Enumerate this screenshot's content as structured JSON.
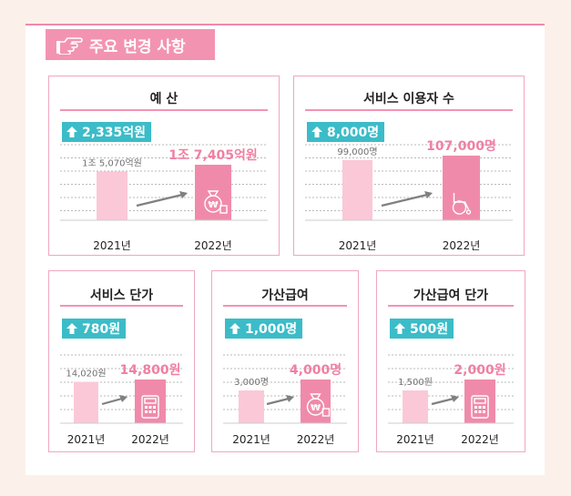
{
  "header": {
    "title": "주요 변경 사항",
    "icon": "pointing-hand-icon"
  },
  "colors": {
    "pink_light": "#fbc8d7",
    "pink_dark": "#f08aab",
    "teal": "#3bbcc8",
    "value_pink": "#f07fa3",
    "arrow": "#808080"
  },
  "cards": [
    {
      "key": "budget",
      "title": "예 산",
      "badge": "2,335억원",
      "icon": "money-bag-icon"
    },
    {
      "key": "users",
      "title": "서비스 이용자 수",
      "badge": "8,000명",
      "icon": "wheelchair-icon"
    },
    {
      "key": "unit_price",
      "title": "서비스 단가",
      "badge": "780원",
      "icon": "calculator-icon"
    },
    {
      "key": "benefit",
      "title": "가산급여",
      "badge": "1,000명",
      "icon": "money-bag-icon"
    },
    {
      "key": "benefit_price",
      "title": "가산급여 단가",
      "badge": "500원",
      "icon": "calculator-icon"
    }
  ],
  "chart_data": [
    {
      "type": "bar",
      "title": "예 산",
      "categories": [
        "2021년",
        "2022년"
      ],
      "values": [
        15070,
        17405
      ],
      "value_labels": [
        "1조 5,070억원",
        "1조 7,405억원"
      ],
      "unit": "억원"
    },
    {
      "type": "bar",
      "title": "서비스 이용자 수",
      "categories": [
        "2021년",
        "2022년"
      ],
      "values": [
        99000,
        107000
      ],
      "value_labels": [
        "99,000명",
        "107,000명"
      ],
      "unit": "명"
    },
    {
      "type": "bar",
      "title": "서비스 단가",
      "categories": [
        "2021년",
        "2022년"
      ],
      "values": [
        14020,
        14800
      ],
      "value_labels": [
        "14,020원",
        "14,800원"
      ],
      "unit": "원"
    },
    {
      "type": "bar",
      "title": "가산급여",
      "categories": [
        "2021년",
        "2022년"
      ],
      "values": [
        3000,
        4000
      ],
      "value_labels": [
        "3,000명",
        "4,000명"
      ],
      "unit": "명"
    },
    {
      "type": "bar",
      "title": "가산급여 단가",
      "categories": [
        "2021년",
        "2022년"
      ],
      "values": [
        1500,
        2000
      ],
      "value_labels": [
        "1,500원",
        "2,000원"
      ],
      "unit": "원"
    }
  ]
}
